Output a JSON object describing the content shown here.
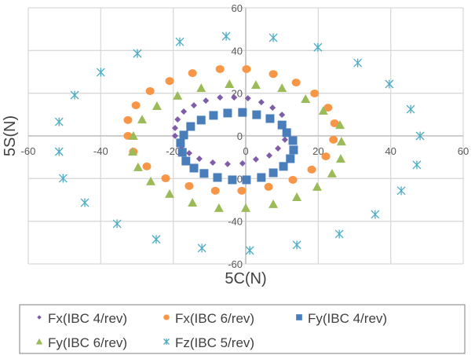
{
  "chart_data": {
    "type": "scatter",
    "title": "",
    "xlabel": "5C(N)",
    "ylabel": "5S(N)",
    "xlim": [
      -60,
      60
    ],
    "ylim": [
      -60,
      60
    ],
    "xticks": [
      -60,
      -40,
      -20,
      0,
      20,
      40,
      60
    ],
    "yticks": [
      -60,
      -40,
      -20,
      0,
      20,
      40,
      60
    ],
    "grid": true,
    "legend_position": "bottom",
    "series": [
      {
        "name": "Fx(IBC 4/rev)",
        "marker": "diamond",
        "color": "#7E5CA8",
        "points": [
          [
            -19.5,
            0
          ],
          [
            -19.5,
            3.7
          ],
          [
            -18.8,
            7.7
          ],
          [
            -17.1,
            11.4
          ],
          [
            -14.3,
            14.3
          ],
          [
            -11.0,
            16.5
          ],
          [
            -7.1,
            18.0
          ],
          [
            -3.2,
            18.0
          ],
          [
            0.6,
            17.6
          ],
          [
            4.3,
            15.8
          ],
          [
            7.4,
            13.2
          ],
          [
            10.0,
            9.9
          ],
          [
            10.4,
            4.8
          ],
          [
            10.8,
            -1.8
          ],
          [
            8.9,
            -5.9
          ],
          [
            6.5,
            -9.2
          ],
          [
            2.8,
            -11.0
          ],
          [
            -0.9,
            -12.9
          ],
          [
            -5.0,
            -13.2
          ],
          [
            -9.1,
            -12.5
          ],
          [
            -12.8,
            -10.7
          ],
          [
            -15.6,
            -8.1
          ],
          [
            -17.7,
            -5.1
          ]
        ]
      },
      {
        "name": "Fx(IBC 6/rev)",
        "marker": "circle",
        "color": "#F79646",
        "points": [
          [
            -32.5,
            7.4
          ],
          [
            -32.5,
            0
          ],
          [
            -31.0,
            -7.4
          ],
          [
            -27.3,
            -14.3
          ],
          [
            -22.1,
            -19.9
          ],
          [
            -15.6,
            -23.5
          ],
          [
            -8.4,
            -25.7
          ],
          [
            -1.1,
            -25.7
          ],
          [
            6.3,
            -23.9
          ],
          [
            13.0,
            -20.6
          ],
          [
            18.2,
            -15.8
          ],
          [
            22.1,
            -9.6
          ],
          [
            24.2,
            -1.8
          ],
          [
            24.5,
            5.9
          ],
          [
            22.7,
            13.2
          ],
          [
            19.0,
            19.9
          ],
          [
            13.9,
            25.0
          ],
          [
            7.6,
            29.0
          ],
          [
            0.2,
            31.3
          ],
          [
            -7.1,
            31.3
          ],
          [
            -14.7,
            29.4
          ],
          [
            -21.0,
            25.7
          ],
          [
            -26.4,
            21.0
          ],
          [
            -30.3,
            14.3
          ]
        ]
      },
      {
        "name": "Fy(IBC 4/rev)",
        "marker": "square",
        "color": "#4A7EBB",
        "points": [
          [
            -5.0,
            10.7
          ],
          [
            -0.9,
            11.0
          ],
          [
            3.0,
            9.9
          ],
          [
            6.7,
            8.1
          ],
          [
            10.0,
            5.1
          ],
          [
            11.3,
            1.5
          ],
          [
            13.0,
            -2.2
          ],
          [
            13.2,
            -6.6
          ],
          [
            12.3,
            -10.7
          ],
          [
            10.4,
            -14.3
          ],
          [
            7.6,
            -17.3
          ],
          [
            4.3,
            -19.5
          ],
          [
            0.2,
            -20.6
          ],
          [
            -3.7,
            -20.6
          ],
          [
            -7.8,
            -19.5
          ],
          [
            -11.5,
            -17.6
          ],
          [
            -14.3,
            -15.1
          ],
          [
            -16.5,
            -11.8
          ],
          [
            -17.5,
            -7.7
          ],
          [
            -18.0,
            -3.3
          ],
          [
            -17.1,
            0.4
          ],
          [
            -15.2,
            4.4
          ],
          [
            -12.3,
            7.4
          ],
          [
            -8.9,
            9.6
          ]
        ]
      },
      {
        "name": "Fy(IBC 6/rev)",
        "marker": "triangle",
        "color": "#9BBB59",
        "points": [
          [
            -31,
            0
          ],
          [
            -31.2,
            -7.4
          ],
          [
            -29.7,
            -14.7
          ],
          [
            -26.2,
            -21.3
          ],
          [
            -21.0,
            -27.2
          ],
          [
            -14.7,
            -31.3
          ],
          [
            -7.4,
            -33.8
          ],
          [
            0,
            -33.8
          ],
          [
            7.6,
            -32.0
          ],
          [
            14.1,
            -28.7
          ],
          [
            19.7,
            -23.9
          ],
          [
            23.8,
            -17.6
          ],
          [
            26.2,
            -10.7
          ],
          [
            26.4,
            -2.6
          ],
          [
            26.0,
            5.1
          ],
          [
            21.4,
            11.8
          ],
          [
            16.5,
            17.3
          ],
          [
            10.0,
            22.4
          ],
          [
            2.8,
            23.9
          ],
          [
            -4.5,
            24.3
          ],
          [
            -12.3,
            22.4
          ],
          [
            -18.8,
            18.8
          ],
          [
            -24.5,
            14.0
          ],
          [
            -28.6,
            7.7
          ]
        ]
      },
      {
        "name": "Fz(IBC 5/rev)",
        "marker": "asterisk",
        "color": "#4BACC6",
        "points": [
          [
            -51.5,
            6.6
          ],
          [
            -47.2,
            19.1
          ],
          [
            -40.0,
            29.8
          ],
          [
            -29.9,
            38.6
          ],
          [
            -18.2,
            44.1
          ],
          [
            -5.4,
            46.7
          ],
          [
            7.6,
            46.0
          ],
          [
            19.9,
            41.5
          ],
          [
            30.9,
            34.2
          ],
          [
            39.6,
            24.3
          ],
          [
            45.5,
            12.5
          ],
          [
            48.1,
            0
          ],
          [
            47.2,
            -13.6
          ],
          [
            42.9,
            -25.7
          ],
          [
            35.7,
            -36.8
          ],
          [
            25.8,
            -46.0
          ],
          [
            14.1,
            -51.1
          ],
          [
            1.1,
            -53.7
          ],
          [
            -12.1,
            -52.6
          ],
          [
            -24.7,
            -48.5
          ],
          [
            -35.5,
            -41.2
          ],
          [
            -44.4,
            -31.3
          ],
          [
            -50.4,
            -19.9
          ],
          [
            -51.5,
            -7.4
          ]
        ]
      }
    ]
  }
}
